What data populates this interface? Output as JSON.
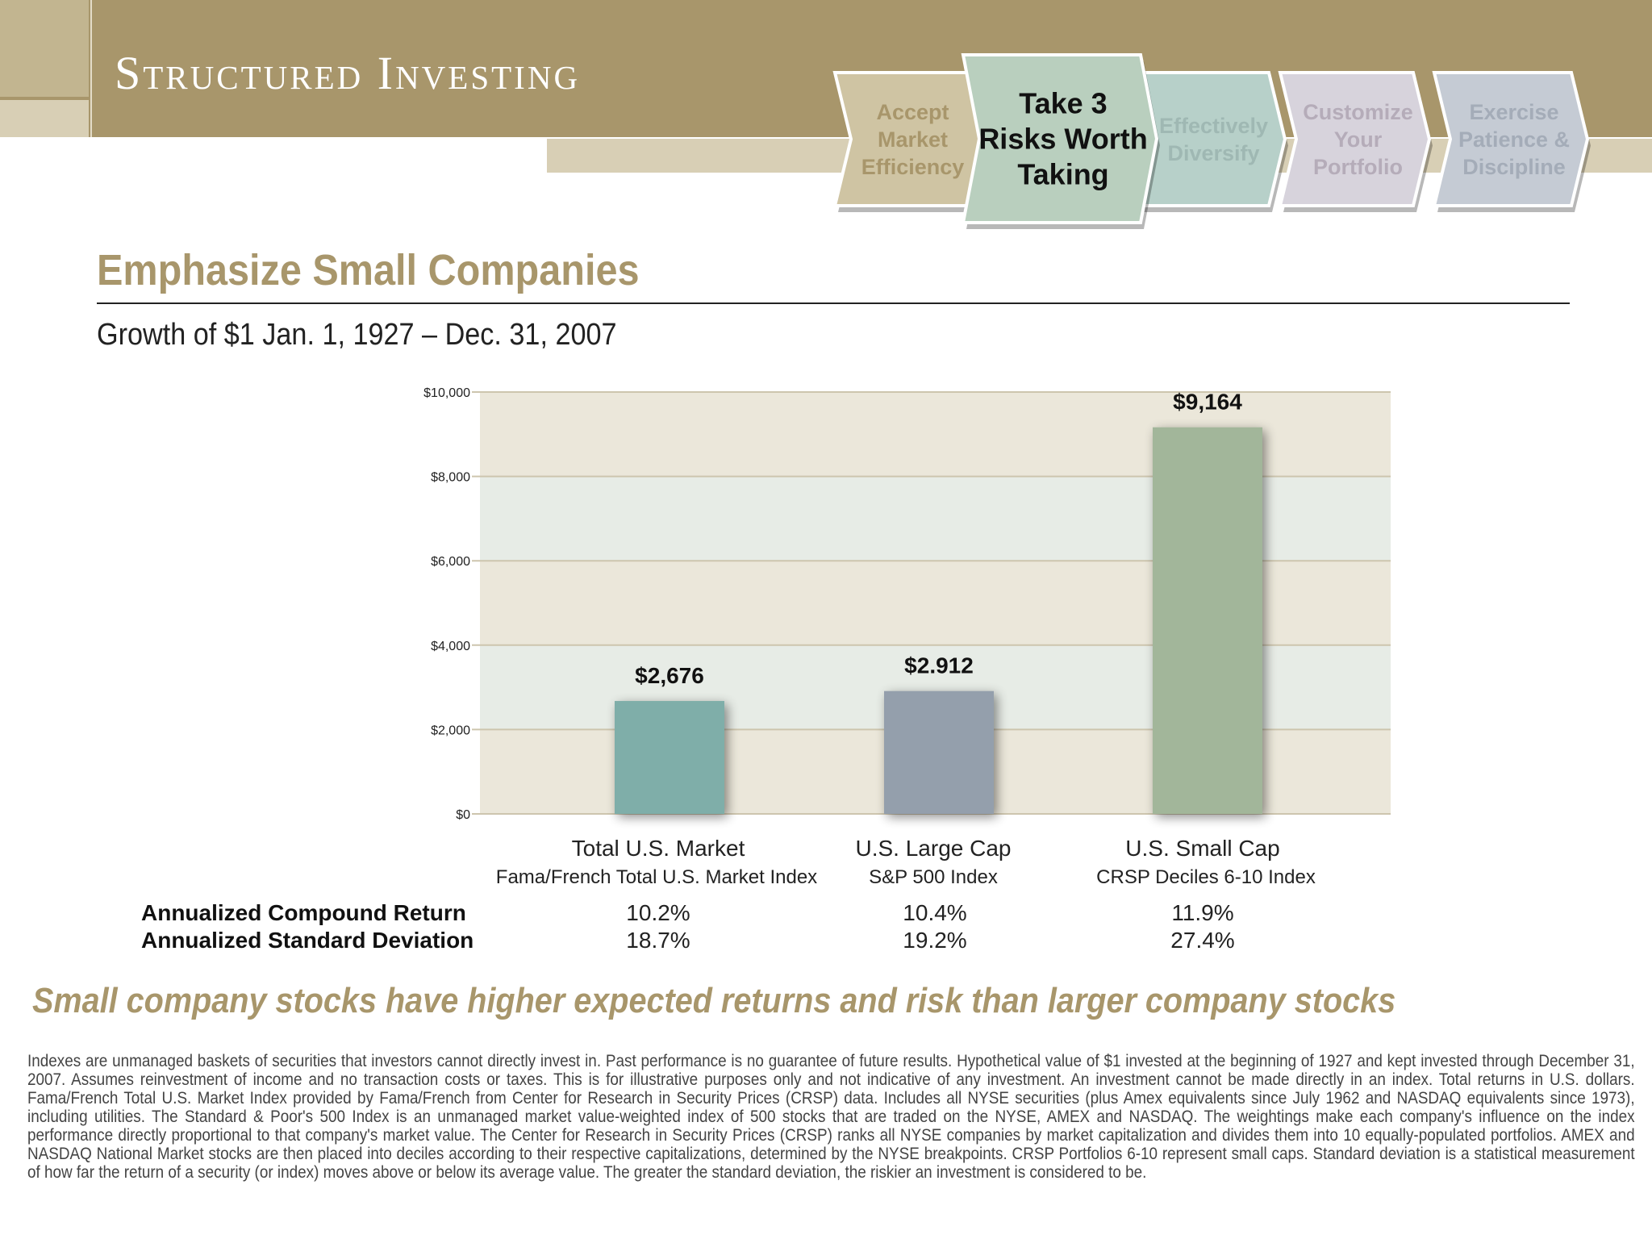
{
  "header": {
    "title": "Structured Investing",
    "steps": [
      {
        "label": "Accept\nMarket\nEfficiency",
        "active": false,
        "fill": "#cfc4a3",
        "text_color": "#a8966b"
      },
      {
        "label": "Take 3\nRisks Worth\nTaking",
        "active": true,
        "fill": "#b9cfbe",
        "text_color": "#111111"
      },
      {
        "label": "Effectively\nDiversify",
        "active": false,
        "fill": "#b7d0c9",
        "text_color": "#9fb8b3"
      },
      {
        "label": "Customize\nYour\nPortfolio",
        "active": false,
        "fill": "#d7d3dc",
        "text_color": "#b5acb9"
      },
      {
        "label": "Exercise\nPatience &\nDiscipline",
        "active": false,
        "fill": "#c5cbd4",
        "text_color": "#a4acb8"
      }
    ]
  },
  "page": {
    "title": "Emphasize Small Companies",
    "subtitle": "Growth of $1 Jan. 1, 1927 – Dec. 31, 2007"
  },
  "chart_data": {
    "type": "bar",
    "categories": [
      "Total U.S. Market",
      "U.S. Large Cap",
      "U.S. Small Cap"
    ],
    "category_subtitles": [
      "Fama/French Total U.S. Market Index",
      "S&P 500 Index",
      "CRSP Deciles 6-10 Index"
    ],
    "values": [
      2676,
      2912,
      9164
    ],
    "data_labels": [
      "$2,676",
      "$2.912",
      "$9,164"
    ],
    "bar_colors": [
      "#7faea9",
      "#949fac",
      "#a2b69a"
    ],
    "yticks": [
      "$0",
      "$2,000",
      "$4,000",
      "$6,000",
      "$8,000",
      "$10,000"
    ],
    "ylim": [
      0,
      10000
    ],
    "grid": true
  },
  "stats": {
    "return_label": "Annualized Compound Return",
    "stddev_label": "Annualized Standard Deviation",
    "returns": [
      "10.2%",
      "10.4%",
      "11.9%"
    ],
    "stddevs": [
      "18.7%",
      "19.2%",
      "27.4%"
    ]
  },
  "tagline": "Small company stocks have higher expected returns and risk than larger company stocks",
  "disclaimer": "Indexes are unmanaged baskets of securities that investors cannot directly invest in. Past performance is no guarantee of future results. Hypothetical value of $1 invested at the beginning of 1927 and kept invested through December 31, 2007. Assumes reinvestment of income and no transaction costs or taxes. This is for illustrative purposes only and not indicative of any investment. An investment cannot be made directly in an index. Total returns in U.S. dollars. Fama/French Total U.S. Market Index provided by Fama/French from Center for Research in Security Prices (CRSP) data. Includes all NYSE securities (plus Amex equivalents since July 1962 and NASDAQ equivalents since 1973), including utilities. The Standard & Poor's 500 Index is an unmanaged market value-weighted index of 500 stocks that are traded on the NYSE, AMEX and NASDAQ. The weightings make each company's influence on the index performance directly proportional to that company's market value. The Center for Research in Security Prices (CRSP) ranks all NYSE companies by market capitalization and divides them into 10 equally-populated portfolios. AMEX and NASDAQ National Market stocks are then placed into deciles according to their respective capitalizations, determined by the NYSE breakpoints. CRSP Portfolios 6-10 represent small caps. Standard deviation is a statistical measurement of how far the return of a security (or index) moves above or below its average value. The greater the standard deviation, the riskier an investment is considered to be."
}
